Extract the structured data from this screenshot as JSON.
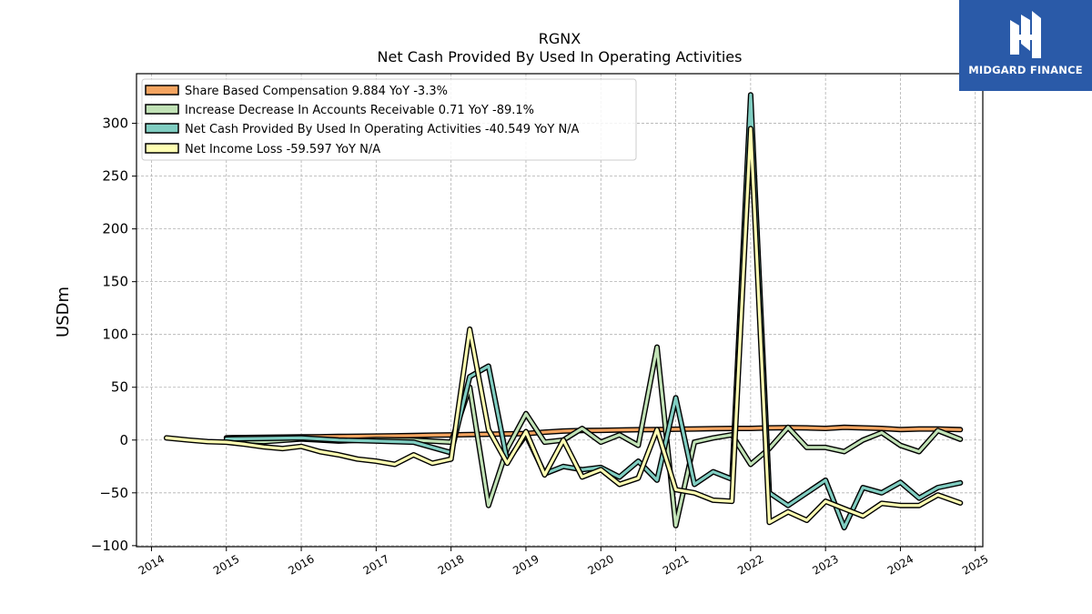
{
  "chart_data": {
    "type": "line",
    "title": "RGNX",
    "subtitle": "Net Cash Provided By Used In Operating Activities",
    "ylabel": "USDm",
    "xlabel": "",
    "xlim": [
      2013.8,
      2025.1
    ],
    "ylim": [
      -101,
      347
    ],
    "x_ticks": [
      "2014",
      "2015",
      "2016",
      "2017",
      "2018",
      "2019",
      "2020",
      "2021",
      "2022",
      "2023",
      "2024",
      "2025"
    ],
    "y_ticks": [
      "−100",
      "−50",
      "0",
      "50",
      "100",
      "150",
      "200",
      "250",
      "300"
    ],
    "grid": true,
    "legend_position": "top-left",
    "series": [
      {
        "name": "Share Based Compensation",
        "legend_label": "Share Based Compensation  9.884 YoY -3.3%",
        "color": "#f4a460",
        "points": [
          [
            2015.0,
            2.2
          ],
          [
            2015.25,
            2.4
          ],
          [
            2015.5,
            2.6
          ],
          [
            2015.75,
            2.8
          ],
          [
            2016.0,
            3.0
          ],
          [
            2016.25,
            3.2
          ],
          [
            2016.5,
            3.4
          ],
          [
            2016.75,
            3.6
          ],
          [
            2017.0,
            3.8
          ],
          [
            2017.25,
            4.0
          ],
          [
            2017.5,
            4.3
          ],
          [
            2017.75,
            4.6
          ],
          [
            2018.0,
            4.9
          ],
          [
            2018.25,
            5.2
          ],
          [
            2018.5,
            5.5
          ],
          [
            2018.75,
            5.8
          ],
          [
            2019.0,
            6.2
          ],
          [
            2019.25,
            7.5
          ],
          [
            2019.5,
            8.5
          ],
          [
            2019.75,
            9.0
          ],
          [
            2020.0,
            9.2
          ],
          [
            2020.25,
            9.5
          ],
          [
            2020.5,
            9.8
          ],
          [
            2020.75,
            10.0
          ],
          [
            2021.0,
            10.2
          ],
          [
            2021.25,
            10.5
          ],
          [
            2021.5,
            10.8
          ],
          [
            2021.75,
            11.0
          ],
          [
            2022.0,
            11.0
          ],
          [
            2022.25,
            11.5
          ],
          [
            2022.5,
            11.8
          ],
          [
            2022.75,
            11.5
          ],
          [
            2023.0,
            11.0
          ],
          [
            2023.25,
            12.0
          ],
          [
            2023.5,
            11.5
          ],
          [
            2023.75,
            11.0
          ],
          [
            2024.0,
            10.0
          ],
          [
            2024.25,
            10.5
          ],
          [
            2024.5,
            10.5
          ],
          [
            2024.8,
            9.884
          ]
        ]
      },
      {
        "name": "Increase Decrease In Accounts Receivable",
        "legend_label": "Increase Decrease In Accounts Receivable  0.71 YoY -89.1%",
        "color": "#c1e2b6",
        "points": [
          [
            2015.0,
            0.0
          ],
          [
            2015.5,
            -1.5
          ],
          [
            2016.0,
            1.0
          ],
          [
            2016.5,
            -1.0
          ],
          [
            2017.0,
            0.5
          ],
          [
            2017.5,
            0.0
          ],
          [
            2018.0,
            -2.0
          ],
          [
            2018.25,
            50.0
          ],
          [
            2018.5,
            -62.0
          ],
          [
            2018.75,
            -8.0
          ],
          [
            2019.0,
            25.0
          ],
          [
            2019.25,
            -2.0
          ],
          [
            2019.5,
            0.0
          ],
          [
            2019.75,
            11.0
          ],
          [
            2020.0,
            -2.0
          ],
          [
            2020.25,
            5.0
          ],
          [
            2020.5,
            -5.0
          ],
          [
            2020.75,
            88.0
          ],
          [
            2021.0,
            -81.0
          ],
          [
            2021.25,
            -2.0
          ],
          [
            2021.5,
            2.0
          ],
          [
            2021.75,
            5.0
          ],
          [
            2022.0,
            -23.0
          ],
          [
            2022.25,
            -8.0
          ],
          [
            2022.5,
            12.0
          ],
          [
            2022.75,
            -7.0
          ],
          [
            2023.0,
            -7.0
          ],
          [
            2023.25,
            -11.0
          ],
          [
            2023.5,
            0.0
          ],
          [
            2023.75,
            7.0
          ],
          [
            2024.0,
            -5.0
          ],
          [
            2024.25,
            -11.0
          ],
          [
            2024.5,
            9.0
          ],
          [
            2024.8,
            0.71
          ]
        ]
      },
      {
        "name": "Net Cash Provided By Used In Operating Activities",
        "legend_label": "Net Cash Provided By Used In Operating Activities  -40.549 YoY N/A",
        "color": "#80cdc1",
        "points": [
          [
            2015.0,
            1.0
          ],
          [
            2015.5,
            1.5
          ],
          [
            2016.0,
            2.0
          ],
          [
            2016.5,
            0.0
          ],
          [
            2017.0,
            -1.0
          ],
          [
            2017.5,
            -2.0
          ],
          [
            2018.0,
            -12.0
          ],
          [
            2018.25,
            60.0
          ],
          [
            2018.5,
            70.0
          ],
          [
            2018.75,
            -20.0
          ],
          [
            2019.0,
            5.0
          ],
          [
            2019.25,
            -32.0
          ],
          [
            2019.5,
            -25.0
          ],
          [
            2019.75,
            -28.0
          ],
          [
            2020.0,
            -26.0
          ],
          [
            2020.25,
            -35.0
          ],
          [
            2020.5,
            -20.0
          ],
          [
            2020.75,
            -38.0
          ],
          [
            2021.0,
            40.0
          ],
          [
            2021.25,
            -42.0
          ],
          [
            2021.5,
            -30.0
          ],
          [
            2021.75,
            -37.0
          ],
          [
            2022.0,
            327.0
          ],
          [
            2022.25,
            -50.0
          ],
          [
            2022.5,
            -62.0
          ],
          [
            2022.75,
            -50.0
          ],
          [
            2023.0,
            -38.0
          ],
          [
            2023.25,
            -83.0
          ],
          [
            2023.5,
            -45.0
          ],
          [
            2023.75,
            -50.0
          ],
          [
            2024.0,
            -40.0
          ],
          [
            2024.25,
            -55.0
          ],
          [
            2024.5,
            -45.0
          ],
          [
            2024.8,
            -40.549
          ]
        ]
      },
      {
        "name": "Net Income Loss",
        "legend_label": "Net Income Loss  -59.597 YoY N/A",
        "color": "#ffffb3",
        "points": [
          [
            2014.2,
            2.0
          ],
          [
            2014.5,
            0.0
          ],
          [
            2014.75,
            -1.5
          ],
          [
            2015.0,
            -2.0
          ],
          [
            2015.25,
            -4.0
          ],
          [
            2015.5,
            -6.5
          ],
          [
            2015.75,
            -8.0
          ],
          [
            2016.0,
            -6.0
          ],
          [
            2016.25,
            -11.0
          ],
          [
            2016.5,
            -14.0
          ],
          [
            2016.75,
            -18.0
          ],
          [
            2017.0,
            -20.0
          ],
          [
            2017.25,
            -23.0
          ],
          [
            2017.5,
            -14.0
          ],
          [
            2017.75,
            -22.0
          ],
          [
            2018.0,
            -18.0
          ],
          [
            2018.25,
            105.0
          ],
          [
            2018.5,
            10.0
          ],
          [
            2018.75,
            -22.0
          ],
          [
            2019.0,
            8.0
          ],
          [
            2019.25,
            -33.0
          ],
          [
            2019.5,
            0.0
          ],
          [
            2019.75,
            -35.0
          ],
          [
            2020.0,
            -28.0
          ],
          [
            2020.25,
            -42.0
          ],
          [
            2020.5,
            -36.0
          ],
          [
            2020.75,
            10.0
          ],
          [
            2021.0,
            -47.0
          ],
          [
            2021.25,
            -50.0
          ],
          [
            2021.5,
            -57.0
          ],
          [
            2021.75,
            -58.0
          ],
          [
            2022.0,
            295.0
          ],
          [
            2022.25,
            -78.0
          ],
          [
            2022.5,
            -68.0
          ],
          [
            2022.75,
            -76.0
          ],
          [
            2023.0,
            -58.0
          ],
          [
            2023.25,
            -65.0
          ],
          [
            2023.5,
            -72.0
          ],
          [
            2023.75,
            -60.0
          ],
          [
            2024.0,
            -62.0
          ],
          [
            2024.25,
            -62.0
          ],
          [
            2024.5,
            -52.0
          ],
          [
            2024.8,
            -59.597
          ]
        ]
      }
    ]
  },
  "logo": {
    "text": "MIDGARD FINANCE",
    "background": "#2a5aa8"
  }
}
